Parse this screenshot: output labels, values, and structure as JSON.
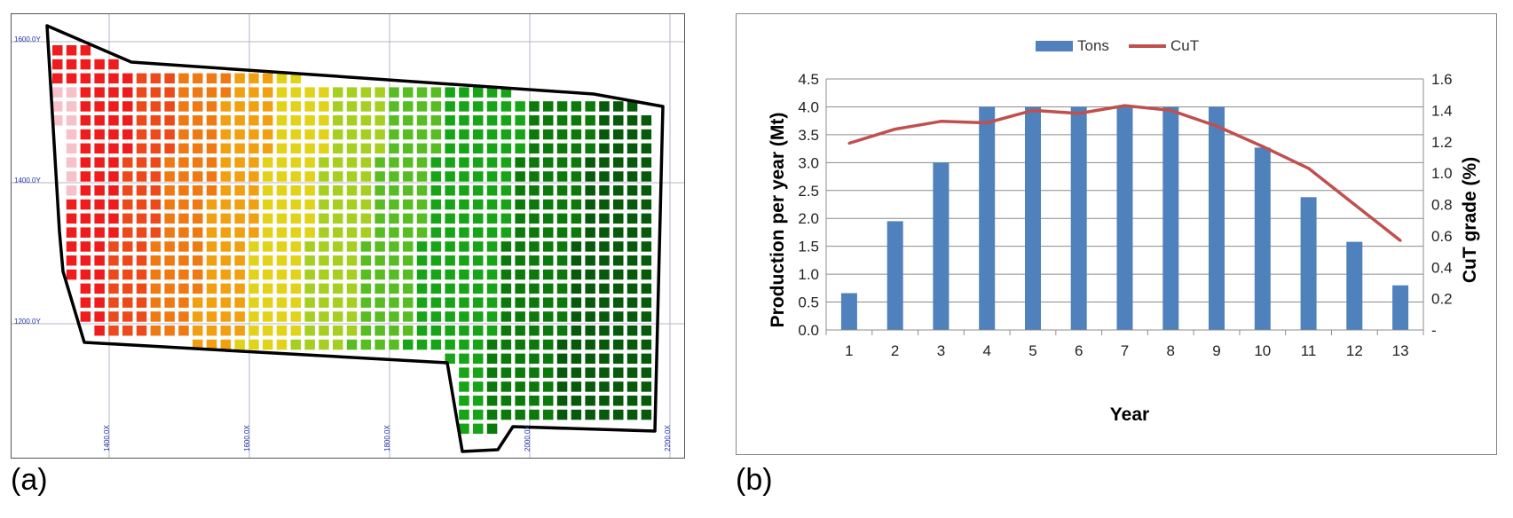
{
  "panel_labels": {
    "a": "(a)",
    "b": "(b)"
  },
  "chart_data": [
    {
      "type": "heatmap",
      "description_role": "block-model-map",
      "y_axis_labels": [
        "1600.0Y",
        "1400.0Y",
        "1200.0Y"
      ],
      "x_axis_labels": [
        "1400.0X",
        "1600.0X",
        "1800.0X",
        "2000.0X",
        "2200.0X"
      ],
      "grid": true,
      "colors": {
        "pink": "#f7c1c9",
        "red": "#ee1c1c",
        "red_orange": "#ec4a1a",
        "orange": "#ef7a14",
        "amber": "#f0a010",
        "yellow": "#e2d21a",
        "lime": "#a6cf22",
        "light_green": "#58bd22",
        "green": "#17a517",
        "dark_green": "#0b7a0b",
        "darkest_green": "#075a0b",
        "purple": "#4b0a6b"
      }
    },
    {
      "type": "bar",
      "categories": [
        "1",
        "2",
        "3",
        "4",
        "5",
        "6",
        "7",
        "8",
        "9",
        "10",
        "11",
        "12",
        "13"
      ],
      "series": [
        {
          "name": "Tons",
          "type": "bar",
          "axis": "left",
          "values": [
            0.66,
            1.95,
            3.0,
            4.0,
            4.0,
            4.0,
            4.0,
            4.0,
            4.0,
            3.27,
            2.38,
            1.58,
            0.8
          ]
        },
        {
          "name": "CuT",
          "type": "line",
          "axis": "right",
          "values": [
            1.19,
            1.28,
            1.33,
            1.32,
            1.4,
            1.38,
            1.43,
            1.4,
            1.3,
            1.17,
            1.03,
            0.8,
            0.57
          ]
        }
      ],
      "xlabel": "Year",
      "ylabel": "Production per year (Mt)",
      "y2label": "CuT grade (%)",
      "ylim": [
        0,
        4.5
      ],
      "y2lim": [
        0,
        1.6
      ],
      "yticks": [
        "0.0",
        "0.5",
        "1.0",
        "1.5",
        "2.0",
        "2.5",
        "3.0",
        "3.5",
        "4.0",
        "4.5"
      ],
      "y2ticks": [
        "-",
        "0.2",
        "0.4",
        "0.6",
        "0.8",
        "1.0",
        "1.2",
        "1.4",
        "1.6"
      ],
      "legend_position": "top-center",
      "grid": true,
      "colors": {
        "Tons": "#4f81bd",
        "CuT": "#c0504d"
      }
    }
  ]
}
